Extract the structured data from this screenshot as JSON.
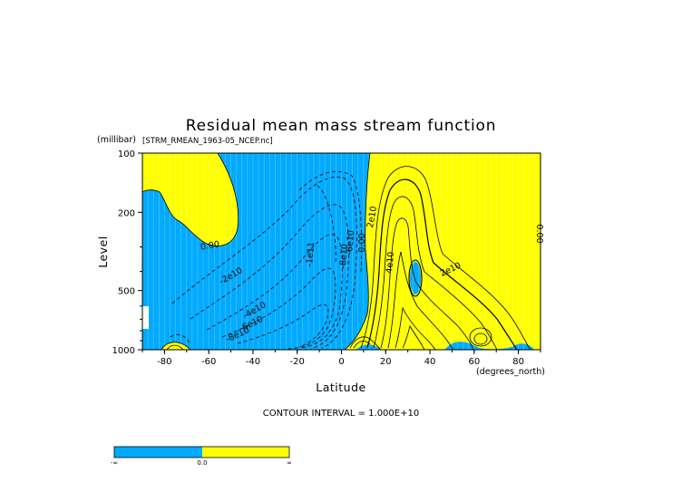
{
  "chart_data": {
    "type": "contour",
    "title": "Residual mean mass stream function",
    "subtitle": "[STRM_RMEAN_1963-05_NCEP.nc]",
    "xlabel": "Latitude",
    "x_units": "(degrees_north)",
    "ylabel": "Level",
    "y_units": "(millibar)",
    "x_ticks": [
      "-80",
      "-60",
      "-40",
      "-20",
      "0",
      "20",
      "40",
      "60",
      "80"
    ],
    "y_ticks": [
      "100",
      "200",
      "500",
      "1000"
    ],
    "xlim": [
      -90,
      90
    ],
    "ylim": [
      1000,
      100
    ],
    "y_scale": "log",
    "contour_interval_label": "CONTOUR INTERVAL = 1.000E+10",
    "contour_labels": [
      "0.00",
      "-2e10",
      "-4e10",
      "-6e10",
      "-8e10",
      "-1e11",
      "-8e10",
      "-6e10",
      "0.00",
      "2e10",
      "4e10",
      "2e10",
      "0.00"
    ],
    "colors": {
      "negative": "#00aaff",
      "positive": "#ffff00"
    },
    "colorbar": {
      "labels": [
        "-∞",
        "0.0",
        "∞"
      ]
    }
  }
}
